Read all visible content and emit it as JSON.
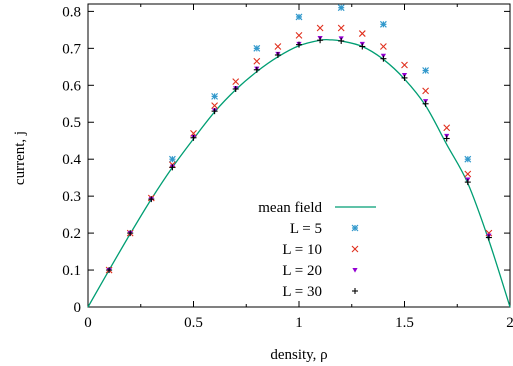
{
  "chart_data": {
    "type": "scatter",
    "xlabel": "density,  ρ",
    "ylabel": "current,  j",
    "xlim": [
      0,
      2
    ],
    "ylim": [
      0,
      0.82
    ],
    "xticks": [
      0,
      0.5,
      1,
      1.5,
      2
    ],
    "xtick_labels": [
      "0",
      "0.5",
      "1",
      "1.5",
      "2"
    ],
    "yticks": [
      0,
      0.1,
      0.2,
      0.3,
      0.4,
      0.5,
      0.6,
      0.7,
      0.8
    ],
    "ytick_labels": [
      "0",
      "0.1",
      "0.2",
      "0.3",
      "0.4",
      "0.5",
      "0.6",
      "0.7",
      "0.8"
    ],
    "grid": false,
    "legend_position": "bottom-center",
    "mean_field": {
      "name": "mean field",
      "color": "#009e73",
      "x": [
        0,
        0.1,
        0.2,
        0.3,
        0.4,
        0.5,
        0.6,
        0.7,
        0.8,
        0.9,
        1.0,
        1.1,
        1.15,
        1.2,
        1.3,
        1.4,
        1.5,
        1.6,
        1.7,
        1.8,
        1.9,
        2.0
      ],
      "y": [
        0,
        0.1,
        0.198,
        0.292,
        0.378,
        0.455,
        0.528,
        0.588,
        0.637,
        0.677,
        0.707,
        0.722,
        0.723,
        0.72,
        0.705,
        0.67,
        0.617,
        0.545,
        0.44,
        0.335,
        0.18,
        0
      ]
    },
    "series": [
      {
        "name": "L = 5",
        "marker": "asterisk",
        "color": "#3399cc",
        "x": [
          0.4,
          0.6,
          0.8,
          1.0,
          1.2,
          1.4,
          1.6,
          1.8
        ],
        "y": [
          0.4,
          0.57,
          0.7,
          0.785,
          0.81,
          0.765,
          0.64,
          0.4
        ]
      },
      {
        "name": "L = 10",
        "marker": "x",
        "color": "#e0301e",
        "x": [
          0.1,
          0.2,
          0.3,
          0.4,
          0.5,
          0.6,
          0.7,
          0.8,
          0.9,
          1.0,
          1.1,
          1.2,
          1.3,
          1.4,
          1.5,
          1.6,
          1.7,
          1.8,
          1.9
        ],
        "y": [
          0.1,
          0.2,
          0.295,
          0.385,
          0.47,
          0.545,
          0.61,
          0.665,
          0.705,
          0.735,
          0.755,
          0.755,
          0.74,
          0.705,
          0.655,
          0.585,
          0.485,
          0.36,
          0.2
        ]
      },
      {
        "name": "L = 20",
        "marker": "triangle-down",
        "color": "#9400d3",
        "x": [
          0.1,
          0.2,
          0.3,
          0.4,
          0.5,
          0.6,
          0.7,
          0.8,
          0.9,
          1.0,
          1.1,
          1.2,
          1.3,
          1.4,
          1.5,
          1.6,
          1.7,
          1.8,
          1.9
        ],
        "y": [
          0.1,
          0.2,
          0.292,
          0.38,
          0.46,
          0.532,
          0.592,
          0.645,
          0.685,
          0.712,
          0.728,
          0.727,
          0.712,
          0.68,
          0.628,
          0.557,
          0.463,
          0.345,
          0.193
        ]
      },
      {
        "name": "L = 30",
        "marker": "plus",
        "color": "#000000",
        "x": [
          0.1,
          0.2,
          0.3,
          0.4,
          0.5,
          0.6,
          0.7,
          0.8,
          0.9,
          1.0,
          1.1,
          1.2,
          1.3,
          1.4,
          1.5,
          1.6,
          1.7,
          1.8,
          1.9
        ],
        "y": [
          0.1,
          0.2,
          0.292,
          0.378,
          0.458,
          0.53,
          0.59,
          0.642,
          0.682,
          0.71,
          0.722,
          0.72,
          0.705,
          0.672,
          0.62,
          0.55,
          0.456,
          0.338,
          0.188
        ]
      }
    ]
  }
}
